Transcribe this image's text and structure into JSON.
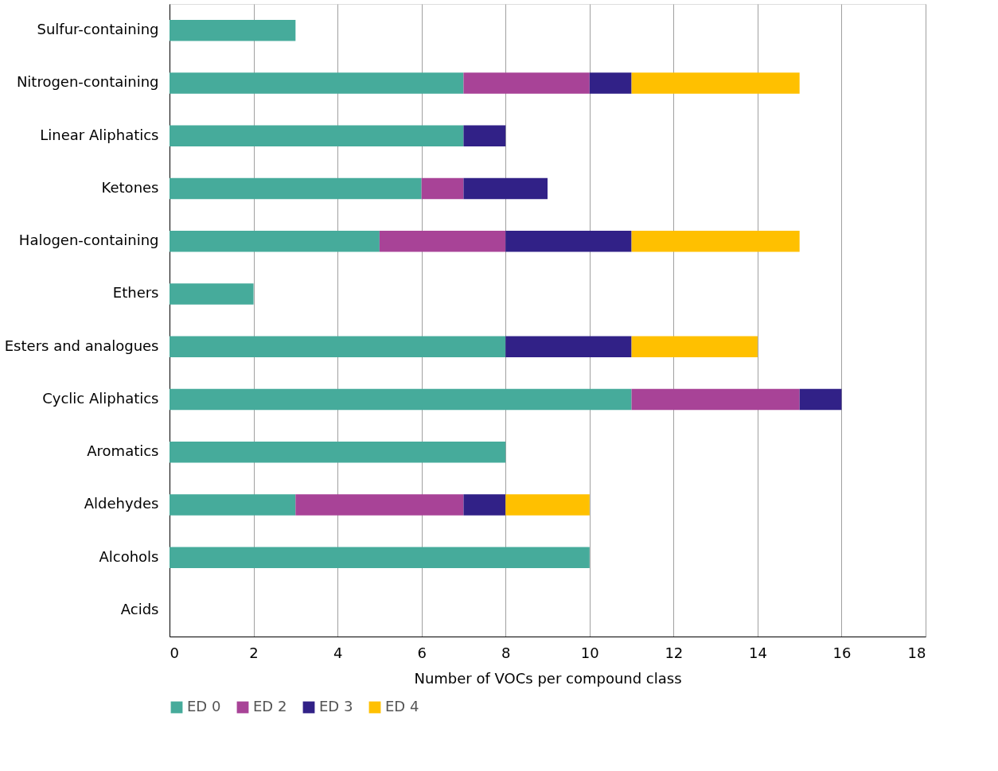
{
  "chart_data": {
    "type": "bar",
    "orientation": "horizontal",
    "stacked": true,
    "xlabel": "Number of VOCs per compound class",
    "categories": [
      "Sulfur-containing",
      "Nitrogen-containing",
      "Linear Aliphatics",
      "Ketones",
      "Halogen-containing",
      "Ethers",
      "Esters and analogues",
      "Cyclic Aliphatics",
      "Aromatics",
      "Aldehydes",
      "Alcohols",
      "Acids"
    ],
    "series": [
      {
        "name": "ED 0",
        "color": "#46ab9b",
        "values": [
          3,
          7,
          7,
          6,
          5,
          2,
          8,
          11,
          8,
          3,
          10,
          null
        ]
      },
      {
        "name": "ED 2",
        "color": "#a84397",
        "values": [
          null,
          3,
          null,
          1,
          3,
          null,
          null,
          4,
          null,
          4,
          null,
          null
        ]
      },
      {
        "name": "ED 3",
        "color": "#312187",
        "values": [
          null,
          1,
          1,
          2,
          3,
          null,
          3,
          1,
          null,
          1,
          null,
          null
        ]
      },
      {
        "name": "ED 4",
        "color": "#ffc000",
        "values": [
          null,
          4,
          null,
          null,
          4,
          null,
          3,
          null,
          null,
          2,
          null,
          null
        ]
      }
    ],
    "xlim": [
      0,
      18
    ],
    "xticks": [
      0,
      2,
      4,
      6,
      8,
      10,
      12,
      14,
      16,
      18
    ],
    "grid": "x",
    "legend": "bottom"
  }
}
